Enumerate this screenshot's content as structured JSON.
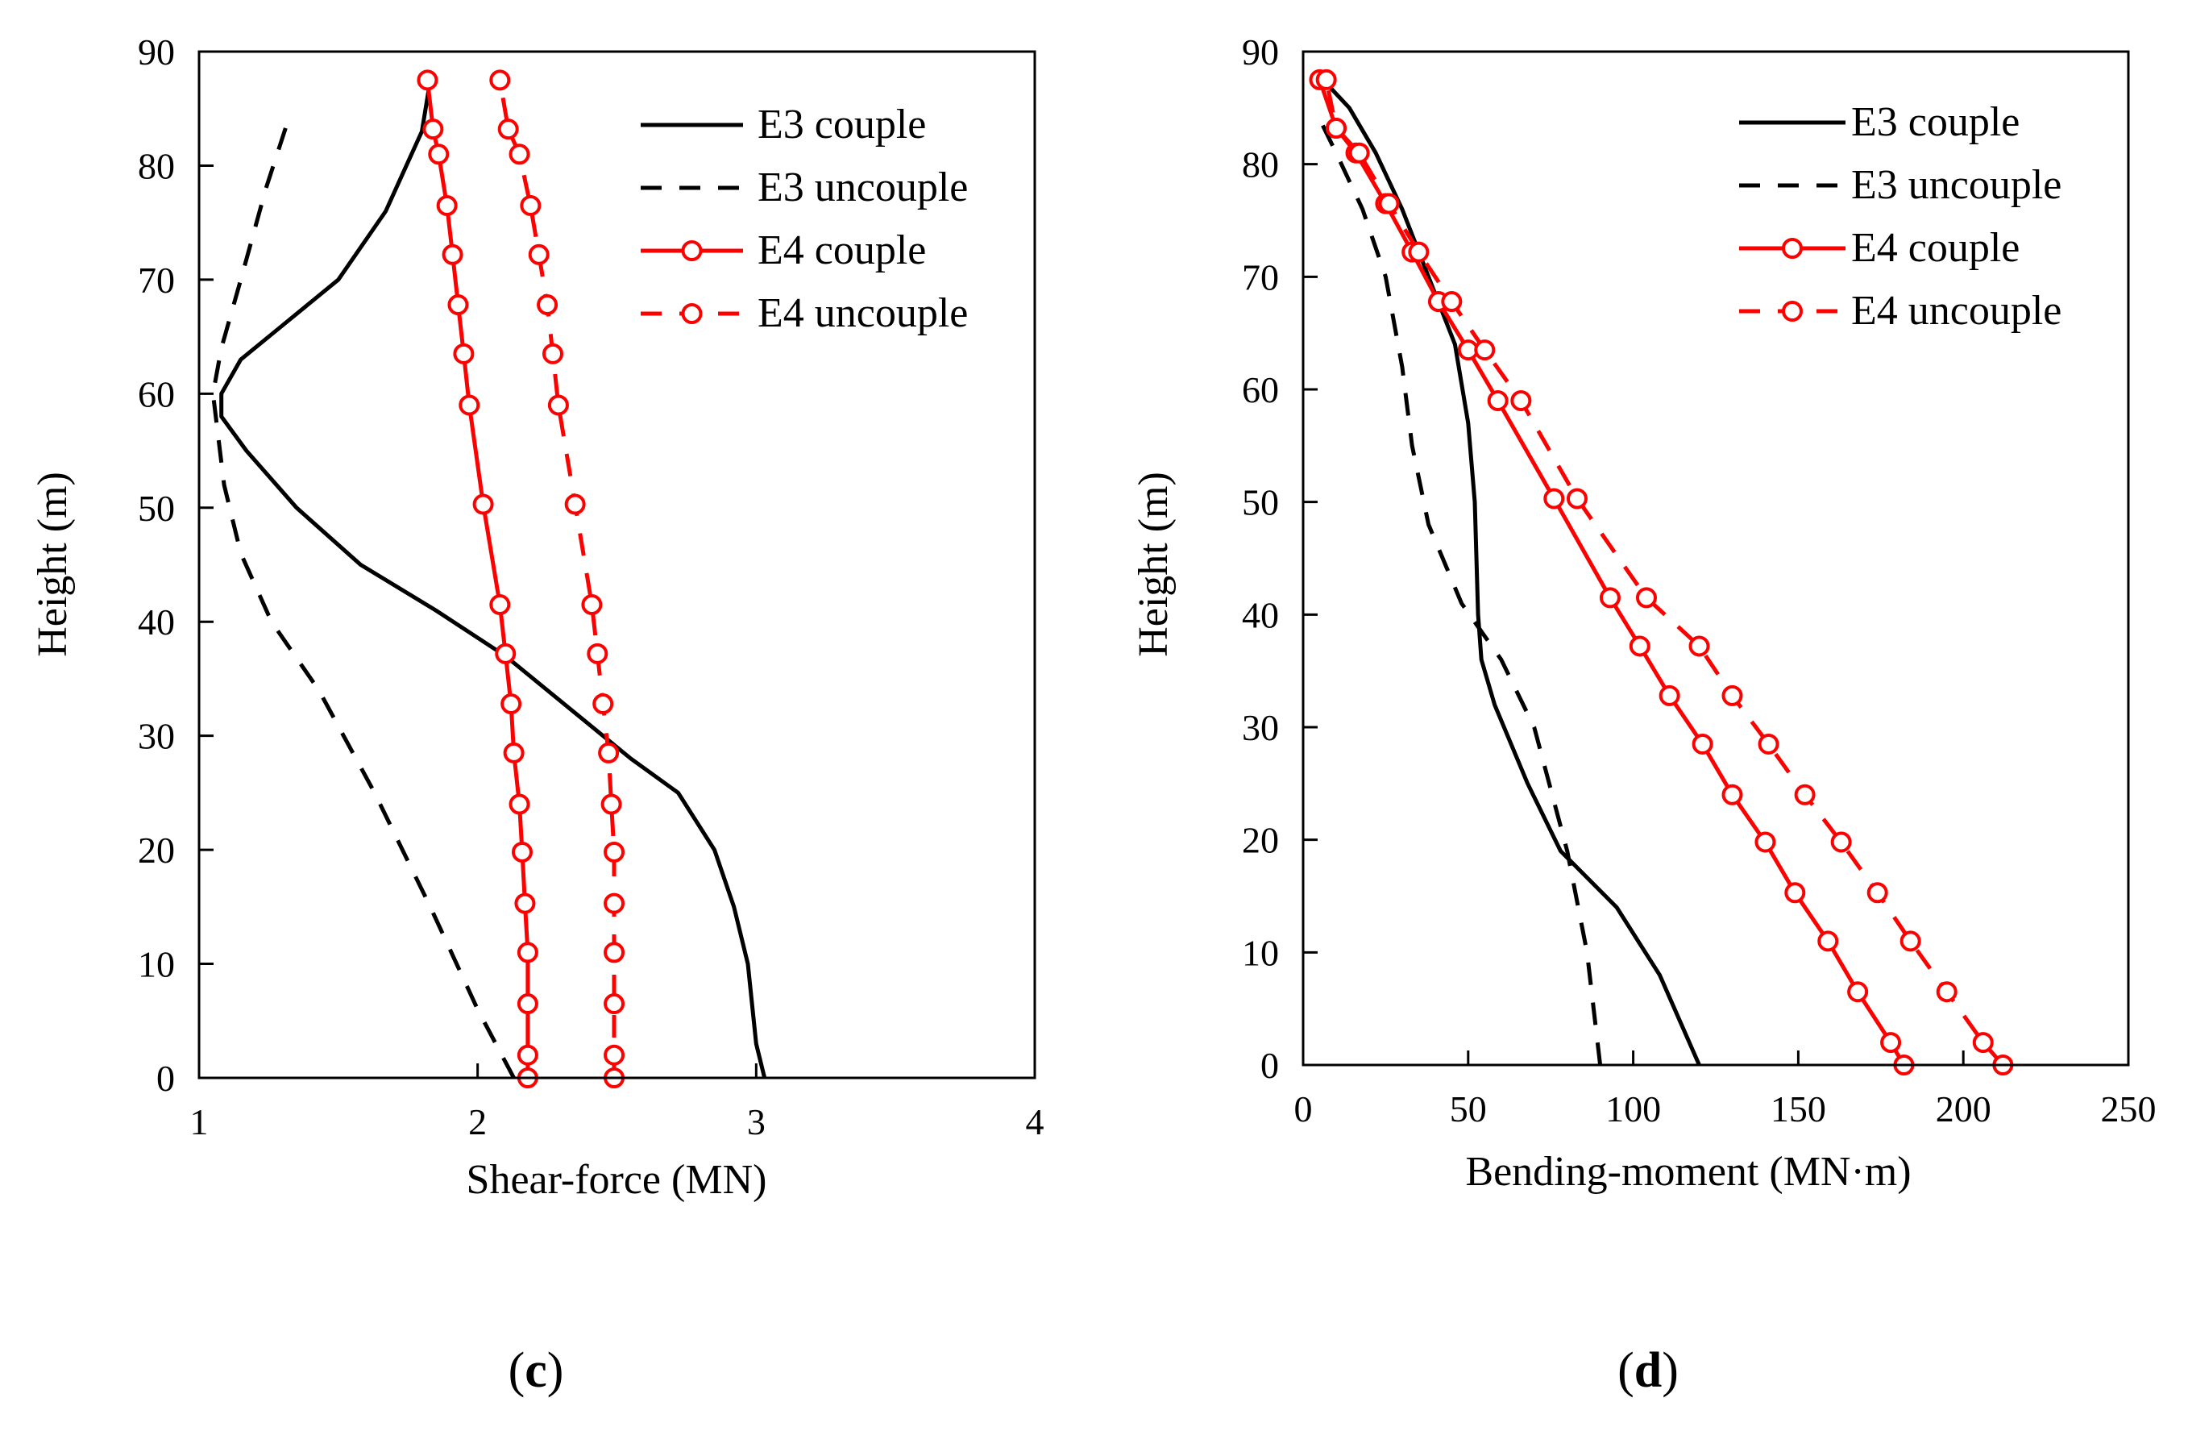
{
  "chart_data": [
    {
      "type": "line",
      "panel_label": "(c)",
      "panel_letter": "c",
      "title": "",
      "xlabel": "Shear-force (MN)",
      "ylabel": "Height (m)",
      "xlim": [
        1,
        4
      ],
      "ylim": [
        0,
        90
      ],
      "x_ticks": [
        1,
        2,
        3,
        4
      ],
      "y_ticks": [
        0,
        10,
        20,
        30,
        40,
        50,
        60,
        70,
        80,
        90
      ],
      "x_tick_labels": [
        "1",
        "2",
        "3",
        "4"
      ],
      "y_tick_labels": [
        "0",
        "10",
        "20",
        "30",
        "40",
        "50",
        "60",
        "70",
        "80",
        "90"
      ],
      "grid": false,
      "legend_position": "top-right",
      "series": [
        {
          "name": "E3 couple",
          "color": "#000000",
          "style": "solid",
          "marker": "none",
          "points": [
            [
              3.03,
              0
            ],
            [
              3.0,
              3
            ],
            [
              2.97,
              10
            ],
            [
              2.92,
              15
            ],
            [
              2.85,
              20
            ],
            [
              2.72,
              25
            ],
            [
              2.55,
              28
            ],
            [
              2.35,
              32
            ],
            [
              2.1,
              37
            ],
            [
              1.85,
              41
            ],
            [
              1.58,
              45
            ],
            [
              1.35,
              50
            ],
            [
              1.17,
              55
            ],
            [
              1.08,
              58
            ],
            [
              1.08,
              60
            ],
            [
              1.15,
              63
            ],
            [
              1.3,
              66
            ],
            [
              1.5,
              70
            ],
            [
              1.67,
              76
            ],
            [
              1.8,
              83
            ],
            [
              1.83,
              87.5
            ]
          ]
        },
        {
          "name": "E3 uncouple",
          "color": "#000000",
          "style": "dashed",
          "marker": "none",
          "points": [
            [
              2.13,
              0
            ],
            [
              2.0,
              6
            ],
            [
              1.83,
              15
            ],
            [
              1.63,
              25
            ],
            [
              1.43,
              34
            ],
            [
              1.26,
              40
            ],
            [
              1.15,
              46
            ],
            [
              1.09,
              52
            ],
            [
              1.05,
              60
            ],
            [
              1.08,
              64
            ],
            [
              1.15,
              70
            ],
            [
              1.24,
              78
            ],
            [
              1.32,
              84
            ]
          ]
        },
        {
          "name": "E4 couple",
          "color": "#ff0000",
          "style": "solid",
          "marker": "circle",
          "points": [
            [
              2.18,
              0
            ],
            [
              2.18,
              2
            ],
            [
              2.18,
              6.5
            ],
            [
              2.18,
              11
            ],
            [
              2.17,
              15.3
            ],
            [
              2.16,
              19.8
            ],
            [
              2.15,
              24
            ],
            [
              2.13,
              28.5
            ],
            [
              2.12,
              32.8
            ],
            [
              2.1,
              37.2
            ],
            [
              2.08,
              41.5
            ],
            [
              2.02,
              50.3
            ],
            [
              1.97,
              59
            ],
            [
              1.95,
              63.5
            ],
            [
              1.93,
              67.8
            ],
            [
              1.91,
              72.2
            ],
            [
              1.89,
              76.5
            ],
            [
              1.86,
              81
            ],
            [
              1.84,
              83.2
            ],
            [
              1.82,
              87.5
            ]
          ]
        },
        {
          "name": "E4 uncouple",
          "color": "#ff0000",
          "style": "dashed",
          "marker": "circle",
          "points": [
            [
              2.49,
              0
            ],
            [
              2.49,
              2
            ],
            [
              2.49,
              6.5
            ],
            [
              2.49,
              11
            ],
            [
              2.49,
              15.3
            ],
            [
              2.49,
              19.8
            ],
            [
              2.48,
              24
            ],
            [
              2.47,
              28.5
            ],
            [
              2.45,
              32.8
            ],
            [
              2.43,
              37.2
            ],
            [
              2.41,
              41.5
            ],
            [
              2.35,
              50.3
            ],
            [
              2.29,
              59
            ],
            [
              2.27,
              63.5
            ],
            [
              2.25,
              67.8
            ],
            [
              2.22,
              72.2
            ],
            [
              2.19,
              76.5
            ],
            [
              2.15,
              81
            ],
            [
              2.11,
              83.2
            ],
            [
              2.08,
              87.5
            ]
          ]
        }
      ]
    },
    {
      "type": "line",
      "panel_label": "(d)",
      "panel_letter": "d",
      "title": "",
      "xlabel": "Bending-moment (MN·m)",
      "ylabel": "Height (m)",
      "xlim": [
        0,
        250
      ],
      "ylim": [
        0,
        90
      ],
      "x_ticks": [
        0,
        50,
        100,
        150,
        200,
        250
      ],
      "y_ticks": [
        0,
        10,
        20,
        30,
        40,
        50,
        60,
        70,
        80,
        90
      ],
      "x_tick_labels": [
        "0",
        "50",
        "100",
        "150",
        "200",
        "250"
      ],
      "y_tick_labels": [
        "0",
        "10",
        "20",
        "30",
        "40",
        "50",
        "60",
        "70",
        "80",
        "90"
      ],
      "grid": false,
      "legend_position": "top-right",
      "series": [
        {
          "name": "E3 couple",
          "color": "#000000",
          "style": "solid",
          "marker": "none",
          "points": [
            [
              120,
              0
            ],
            [
              108,
              8
            ],
            [
              95,
              14
            ],
            [
              78,
              19
            ],
            [
              68,
              25
            ],
            [
              58,
              32
            ],
            [
              54,
              36
            ],
            [
              53,
              40
            ],
            [
              52,
              50
            ],
            [
              50,
              57
            ],
            [
              46,
              64
            ],
            [
              38,
              70
            ],
            [
              30,
              76
            ],
            [
              22,
              81
            ],
            [
              14,
              85
            ],
            [
              6,
              87.5
            ]
          ]
        },
        {
          "name": "E3 uncouple",
          "color": "#000000",
          "style": "dashed",
          "marker": "none",
          "points": [
            [
              90,
              0
            ],
            [
              86,
              10
            ],
            [
              80,
              19
            ],
            [
              70,
              30
            ],
            [
              60,
              36
            ],
            [
              48,
              41
            ],
            [
              38,
              48
            ],
            [
              33,
              55
            ],
            [
              30,
              62
            ],
            [
              25,
              70
            ],
            [
              18,
              76
            ],
            [
              10,
              81
            ],
            [
              5,
              84
            ]
          ]
        },
        {
          "name": "E4 couple",
          "color": "#ff0000",
          "style": "solid",
          "marker": "circle",
          "points": [
            [
              182,
              0
            ],
            [
              178,
              2
            ],
            [
              168,
              6.5
            ],
            [
              159,
              11
            ],
            [
              149,
              15.3
            ],
            [
              140,
              19.8
            ],
            [
              130,
              24
            ],
            [
              121,
              28.5
            ],
            [
              111,
              32.8
            ],
            [
              102,
              37.2
            ],
            [
              93,
              41.5
            ],
            [
              76,
              50.3
            ],
            [
              59,
              59
            ],
            [
              50,
              63.5
            ],
            [
              41,
              67.8
            ],
            [
              33,
              72.2
            ],
            [
              25,
              76.5
            ],
            [
              16,
              81
            ],
            [
              10,
              83.2
            ],
            [
              5,
              87.5
            ]
          ]
        },
        {
          "name": "E4 uncouple",
          "color": "#ff0000",
          "style": "dashed",
          "marker": "circle",
          "points": [
            [
              212,
              0
            ],
            [
              206,
              2
            ],
            [
              195,
              6.5
            ],
            [
              184,
              11
            ],
            [
              174,
              15.3
            ],
            [
              163,
              19.8
            ],
            [
              152,
              24
            ],
            [
              141,
              28.5
            ],
            [
              130,
              32.8
            ],
            [
              120,
              37.2
            ],
            [
              104,
              41.5
            ],
            [
              83,
              50.3
            ],
            [
              66,
              59
            ],
            [
              55,
              63.5
            ],
            [
              45,
              67.8
            ],
            [
              35,
              72.2
            ],
            [
              26,
              76.5
            ],
            [
              17,
              81
            ],
            [
              10,
              83.2
            ],
            [
              7,
              87.5
            ]
          ]
        }
      ]
    }
  ]
}
